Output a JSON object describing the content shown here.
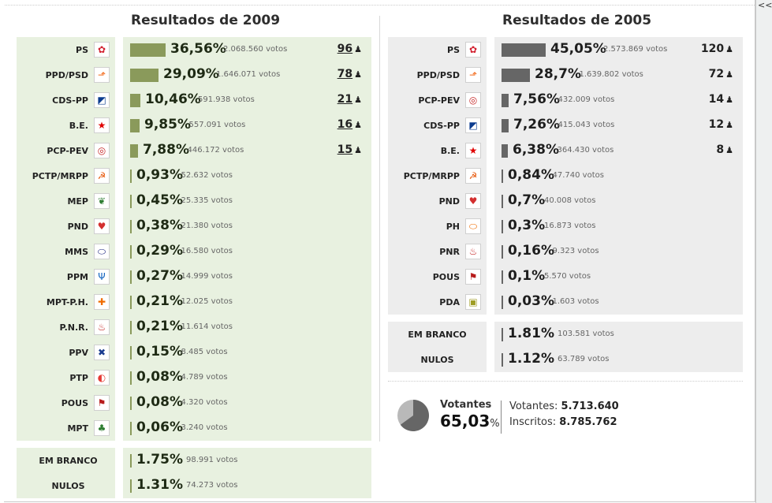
{
  "ui": {
    "collapse_glyph": "<<"
  },
  "colors": {
    "bar_2009": "#8a9a5b",
    "bar_2005": "#666666",
    "panel_2009": "#e8f1e0",
    "panel_2005": "#ededed"
  },
  "results_2009": {
    "title": "Resultados de 2009",
    "parties": [
      {
        "name": "PS",
        "logo": "ps-rose-icon",
        "glyph": "✿",
        "logo_color": "#d2202f",
        "pct": "36,56%",
        "pct_value": 36.56,
        "votes": "2.068.560 votos",
        "seats": "96"
      },
      {
        "name": "PPD/PSD",
        "logo": "psd-arrow-icon",
        "glyph": "⬏",
        "logo_color": "#f26a1b",
        "pct": "29,09%",
        "pct_value": 29.09,
        "votes": "1.646.071 votos",
        "seats": "78"
      },
      {
        "name": "CDS-PP",
        "logo": "cds-icon",
        "glyph": "◩",
        "logo_color": "#0b3b8f",
        "pct": "10,46%",
        "pct_value": 10.46,
        "votes": "591.938 votos",
        "seats": "21"
      },
      {
        "name": "B.E.",
        "logo": "be-star-icon",
        "glyph": "★",
        "logo_color": "#e00000",
        "pct": "9,85%",
        "pct_value": 9.85,
        "votes": "557.091 votos",
        "seats": "16"
      },
      {
        "name": "PCP-PEV",
        "logo": "cdu-icon",
        "glyph": "◎",
        "logo_color": "#c62828",
        "pct": "7,88%",
        "pct_value": 7.88,
        "votes": "446.172 votos",
        "seats": "15"
      },
      {
        "name": "PCTP/MRPP",
        "logo": "mrpp-icon",
        "glyph": "☭",
        "logo_color": "#e65100",
        "pct": "0,93%",
        "pct_value": 0.93,
        "votes": "52.632 votos"
      },
      {
        "name": "MEP",
        "logo": "mep-leaf-icon",
        "glyph": "❦",
        "logo_color": "#2e7d32",
        "pct": "0,45%",
        "pct_value": 0.45,
        "votes": "25.335 votos"
      },
      {
        "name": "PND",
        "logo": "pnd-heart-icon",
        "glyph": "♥",
        "logo_color": "#d32f2f",
        "pct": "0,38%",
        "pct_value": 0.38,
        "votes": "21.380 votos"
      },
      {
        "name": "MMS",
        "logo": "mms-icon",
        "glyph": "⬭",
        "logo_color": "#1a237e",
        "pct": "0,29%",
        "pct_value": 0.29,
        "votes": "16.580 votos"
      },
      {
        "name": "PPM",
        "logo": "ppm-icon",
        "glyph": "Ψ",
        "logo_color": "#1565c0",
        "pct": "0,27%",
        "pct_value": 0.27,
        "votes": "14.999 votos"
      },
      {
        "name": "MPT-P.H.",
        "logo": "mpt-ph-icon",
        "glyph": "✚",
        "logo_color": "#ef6c00",
        "pct": "0,21%",
        "pct_value": 0.21,
        "votes": "12.025 votos"
      },
      {
        "name": "P.N.R.",
        "logo": "pnr-flame-icon",
        "glyph": "♨",
        "logo_color": "#c62828",
        "pct": "0,21%",
        "pct_value": 0.21,
        "votes": "11.614 votos"
      },
      {
        "name": "PPV",
        "logo": "ppv-icon",
        "glyph": "✖",
        "logo_color": "#1a3c8f",
        "pct": "0,15%",
        "pct_value": 0.15,
        "votes": "8.485 votos"
      },
      {
        "name": "PTP",
        "logo": "ptp-icon",
        "glyph": "◐",
        "logo_color": "#e53935",
        "pct": "0,08%",
        "pct_value": 0.08,
        "votes": "4.789 votos"
      },
      {
        "name": "POUS",
        "logo": "pous-icon",
        "glyph": "⚑",
        "logo_color": "#b71c1c",
        "pct": "0,08%",
        "pct_value": 0.08,
        "votes": "4.320 votos"
      },
      {
        "name": "MPT",
        "logo": "mpt-clover-icon",
        "glyph": "♣",
        "logo_color": "#2e7d32",
        "pct": "0,06%",
        "pct_value": 0.06,
        "votes": "3.240 votos"
      }
    ],
    "blank": {
      "label": "EM BRANCO",
      "pct": "1.75%",
      "votes": "98.991 votos"
    },
    "null": {
      "label": "NULOS",
      "pct": "1.31%",
      "votes": "74.273 votos"
    }
  },
  "results_2005": {
    "title": "Resultados de 2005",
    "parties": [
      {
        "name": "PS",
        "logo": "ps-rose-icon",
        "glyph": "✿",
        "logo_color": "#d2202f",
        "pct": "45,05%",
        "pct_value": 45.05,
        "votes": "2.573.869 votos",
        "seats": "120"
      },
      {
        "name": "PPD/PSD",
        "logo": "psd-arrow-icon",
        "glyph": "⬏",
        "logo_color": "#f26a1b",
        "pct": "28,7%",
        "pct_value": 28.7,
        "votes": "1.639.802 votos",
        "seats": "72"
      },
      {
        "name": "PCP-PEV",
        "logo": "cdu-icon",
        "glyph": "◎",
        "logo_color": "#c62828",
        "pct": "7,56%",
        "pct_value": 7.56,
        "votes": "432.009 votos",
        "seats": "14"
      },
      {
        "name": "CDS-PP",
        "logo": "cds-icon",
        "glyph": "◩",
        "logo_color": "#0b3b8f",
        "pct": "7,26%",
        "pct_value": 7.26,
        "votes": "415.043 votos",
        "seats": "12"
      },
      {
        "name": "B.E.",
        "logo": "be-star-icon",
        "glyph": "★",
        "logo_color": "#e00000",
        "pct": "6,38%",
        "pct_value": 6.38,
        "votes": "364.430 votos",
        "seats": "8"
      },
      {
        "name": "PCTP/MRPP",
        "logo": "mrpp-icon",
        "glyph": "☭",
        "logo_color": "#e65100",
        "pct": "0,84%",
        "pct_value": 0.84,
        "votes": "47.740 votos"
      },
      {
        "name": "PND",
        "logo": "pnd-heart-icon",
        "glyph": "♥",
        "logo_color": "#d32f2f",
        "pct": "0,7%",
        "pct_value": 0.7,
        "votes": "40.008 votos"
      },
      {
        "name": "PH",
        "logo": "ph-icon",
        "glyph": "⬭",
        "logo_color": "#ef6c00",
        "pct": "0,3%",
        "pct_value": 0.3,
        "votes": "16.873 votos"
      },
      {
        "name": "PNR",
        "logo": "pnr-flame-icon",
        "glyph": "♨",
        "logo_color": "#c62828",
        "pct": "0,16%",
        "pct_value": 0.16,
        "votes": "9.323 votos"
      },
      {
        "name": "POUS",
        "logo": "pous-icon",
        "glyph": "⚑",
        "logo_color": "#b71c1c",
        "pct": "0,1%",
        "pct_value": 0.1,
        "votes": "5.570 votos"
      },
      {
        "name": "PDA",
        "logo": "pda-icon",
        "glyph": "▣",
        "logo_color": "#9e9d24",
        "pct": "0,03%",
        "pct_value": 0.03,
        "votes": "1.603 votos"
      }
    ],
    "blank": {
      "label": "EM BRANCO",
      "pct": "1.81%",
      "votes": "103.581 votos"
    },
    "null": {
      "label": "NULOS",
      "pct": "1.12%",
      "votes": "63.789 votos"
    },
    "turnout": {
      "label": "Votantes",
      "pct_number": "65,03",
      "pct_sign": "%",
      "value": 65.03,
      "voters_label": "Votantes:",
      "voters_value": "5.713.640",
      "registered_label": "Inscritos:",
      "registered_value": "8.785.762"
    }
  }
}
